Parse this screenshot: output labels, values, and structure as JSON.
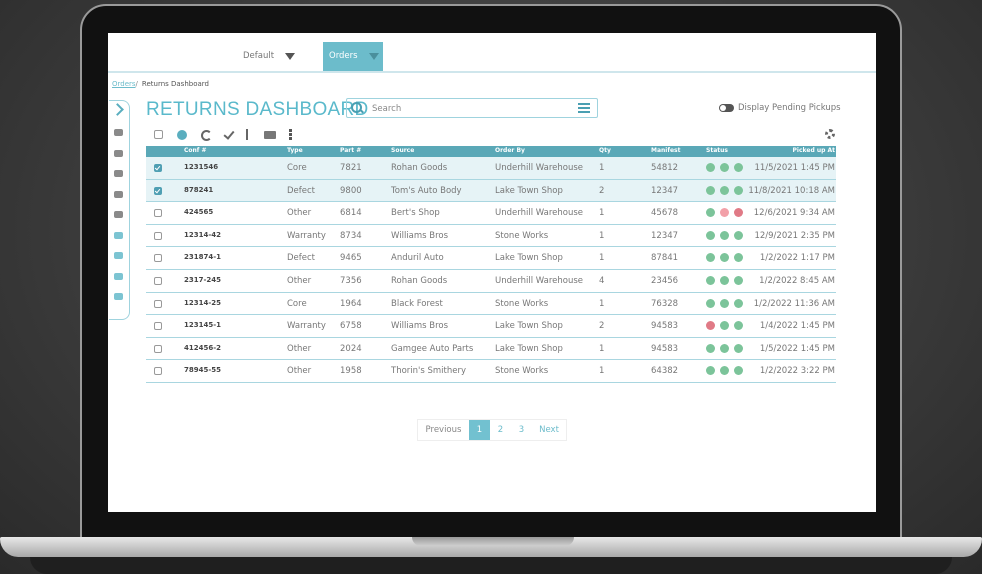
{
  "nav": {
    "tabs": [
      "Default",
      "Orders"
    ],
    "active_tab": 1
  },
  "breadcrumb": {
    "link": "Orders",
    "separator": "/",
    "current": "Returns Dashboard"
  },
  "title": "RETURNS DASHBOARD",
  "search_placeholder": "Search",
  "toggle_label": "Display Pending Pickups",
  "table": {
    "columns": [
      "Conf #",
      "Type",
      "Part #",
      "Source",
      "Order By",
      "Qty",
      "Manifest",
      "Status",
      "Picked up At"
    ],
    "rows": [
      [
        "1231546",
        "Core",
        7821,
        "Rohan Goods",
        "Underhill Warehouse",
        1,
        54812,
        "11/5/2021 1:45 PM"
      ],
      [
        "878241",
        "Defect",
        9800,
        "Tom's Auto Body",
        "Lake Town Shop",
        2,
        12347,
        "11/8/2021 10:18 AM"
      ],
      [
        "424565",
        "Other",
        6814,
        "Bert's Shop",
        "Underhill Warehouse",
        1,
        45678,
        "12/6/2021 9:34 AM"
      ],
      [
        "12314-42",
        "Warranty",
        8734,
        "Williams Bros",
        "Stone Works",
        1,
        12347,
        "12/9/2021 2:35 PM"
      ],
      [
        "231874-1",
        "Defect",
        9465,
        "Anduril Auto",
        "Lake Town Shop",
        1,
        87841,
        "1/2/2022 1:17 PM"
      ],
      [
        "2317-245",
        "Other",
        7356,
        "Rohan Goods",
        "Underhill Warehouse",
        4,
        23456,
        "1/2/2022 8:45 AM"
      ],
      [
        "12314-25",
        "Core",
        1964,
        "Black Forest",
        "Stone Works",
        1,
        76328,
        "1/2/2022 11:36 AM"
      ],
      [
        "123145-1",
        "Warranty",
        6758,
        "Williams Bros",
        "Lake Town Shop",
        2,
        94583,
        "1/4/2022 1:45 PM"
      ],
      [
        "412456-2",
        "Other",
        2024,
        "Gamgee Auto Parts",
        "Lake Town Shop",
        1,
        94583,
        "1/5/2022 1:45 PM"
      ],
      [
        "78945-55",
        "Other",
        1958,
        "Thorin's Smithery",
        "Stone Works",
        1,
        64382,
        "1/2/2022 3:22 PM"
      ]
    ],
    "checked": [
      true,
      true,
      false,
      false,
      false,
      false,
      false,
      false,
      false,
      false
    ],
    "status_colors": [
      [
        "#7cc49a",
        "#7cc49a",
        "#7cc49a"
      ],
      [
        "#7cc49a",
        "#7cc49a",
        "#7cc49a"
      ],
      [
        "#7cc49a",
        "#f2a0a8",
        "#e07a86"
      ],
      [
        "#7cc49a",
        "#7cc49a",
        "#7cc49a"
      ],
      [
        "#7cc49a",
        "#7cc49a",
        "#7cc49a"
      ],
      [
        "#7cc49a",
        "#7cc49a",
        "#7cc49a"
      ],
      [
        "#7cc49a",
        "#7cc49a",
        "#7cc49a"
      ],
      [
        "#e07a86",
        "#7cc49a",
        "#7cc49a"
      ],
      [
        "#7cc49a",
        "#7cc49a",
        "#7cc49a"
      ],
      [
        "#7cc49a",
        "#7cc49a",
        "#7cc49a"
      ]
    ]
  },
  "pagination": {
    "previous": "Previous",
    "pages": [
      1,
      2,
      3
    ],
    "current": 1,
    "next": "Next"
  }
}
